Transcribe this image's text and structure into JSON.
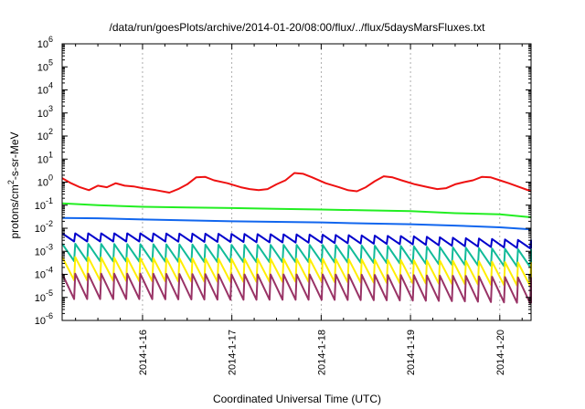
{
  "chart_data": {
    "type": "line",
    "title": "/data/run/goesPlots/archive/2014-01-20/08:00/flux/../flux/5daysMarsFluxes.txt",
    "xlabel": "Coordinated Universal Time (UTC)",
    "ylabel": "protons/cm²-s-sr-MeV",
    "ylabel_parts": {
      "pre": "protons/cm",
      "sup": "2",
      "post": "-s-sr-MeV"
    },
    "yscale": "log",
    "ylim_exponent": [
      -6,
      6
    ],
    "y_ticks": [
      {
        "base": "10",
        "exp": "-6"
      },
      {
        "base": "10",
        "exp": "-5"
      },
      {
        "base": "10",
        "exp": "-4"
      },
      {
        "base": "10",
        "exp": "-3"
      },
      {
        "base": "10",
        "exp": "-2"
      },
      {
        "base": "10",
        "exp": "-1"
      },
      {
        "base": "10",
        "exp": "0"
      },
      {
        "base": "10",
        "exp": "1"
      },
      {
        "base": "10",
        "exp": "2"
      },
      {
        "base": "10",
        "exp": "3"
      },
      {
        "base": "10",
        "exp": "4"
      },
      {
        "base": "10",
        "exp": "5"
      },
      {
        "base": "10",
        "exp": "6"
      }
    ],
    "x_ticks": [
      "2014-1-16",
      "2014-1-17",
      "2014-1-18",
      "2014-1-19",
      "2014-1-20"
    ],
    "xlim_days": [
      15.1,
      20.35
    ],
    "grid": true,
    "series": [
      {
        "color": "#ee1111",
        "points": [
          [
            15.1,
            1.5
          ],
          [
            15.2,
            0.9
          ],
          [
            15.3,
            0.6
          ],
          [
            15.4,
            0.45
          ],
          [
            15.5,
            0.7
          ],
          [
            15.6,
            0.6
          ],
          [
            15.7,
            0.9
          ],
          [
            15.8,
            0.7
          ],
          [
            15.9,
            0.65
          ],
          [
            16.0,
            0.55
          ],
          [
            16.15,
            0.45
          ],
          [
            16.3,
            0.35
          ],
          [
            16.4,
            0.5
          ],
          [
            16.5,
            0.8
          ],
          [
            16.6,
            1.6
          ],
          [
            16.7,
            1.7
          ],
          [
            16.8,
            1.2
          ],
          [
            16.95,
            0.9
          ],
          [
            17.1,
            0.6
          ],
          [
            17.2,
            0.5
          ],
          [
            17.3,
            0.45
          ],
          [
            17.4,
            0.5
          ],
          [
            17.5,
            0.8
          ],
          [
            17.6,
            1.2
          ],
          [
            17.7,
            2.5
          ],
          [
            17.8,
            2.3
          ],
          [
            17.9,
            1.6
          ],
          [
            18.05,
            0.9
          ],
          [
            18.2,
            0.6
          ],
          [
            18.3,
            0.45
          ],
          [
            18.4,
            0.4
          ],
          [
            18.5,
            0.6
          ],
          [
            18.6,
            1.1
          ],
          [
            18.7,
            1.8
          ],
          [
            18.8,
            1.6
          ],
          [
            18.9,
            1.2
          ],
          [
            19.05,
            0.8
          ],
          [
            19.2,
            0.6
          ],
          [
            19.3,
            0.5
          ],
          [
            19.4,
            0.55
          ],
          [
            19.5,
            0.8
          ],
          [
            19.6,
            1.0
          ],
          [
            19.7,
            1.2
          ],
          [
            19.8,
            1.7
          ],
          [
            19.9,
            1.6
          ],
          [
            20.0,
            1.2
          ],
          [
            20.1,
            0.9
          ],
          [
            20.2,
            0.65
          ],
          [
            20.35,
            0.4
          ]
        ]
      },
      {
        "color": "#22ee22",
        "points": [
          [
            15.1,
            0.12
          ],
          [
            15.5,
            0.1
          ],
          [
            16.0,
            0.085
          ],
          [
            16.5,
            0.08
          ],
          [
            17.0,
            0.075
          ],
          [
            17.5,
            0.07
          ],
          [
            18.0,
            0.065
          ],
          [
            18.5,
            0.06
          ],
          [
            19.0,
            0.055
          ],
          [
            19.5,
            0.045
          ],
          [
            20.0,
            0.04
          ],
          [
            20.35,
            0.03
          ]
        ]
      },
      {
        "color": "#1166ee",
        "points": [
          [
            15.1,
            0.028
          ],
          [
            15.5,
            0.027
          ],
          [
            16.0,
            0.024
          ],
          [
            16.5,
            0.022
          ],
          [
            17.0,
            0.02
          ],
          [
            17.5,
            0.019
          ],
          [
            18.0,
            0.018
          ],
          [
            18.5,
            0.016
          ],
          [
            19.0,
            0.015
          ],
          [
            19.5,
            0.013
          ],
          [
            20.0,
            0.011
          ],
          [
            20.35,
            0.009
          ]
        ]
      },
      {
        "color": "#0000cc",
        "sawtooth": {
          "base": [
            [
              15.1,
              0.004
            ],
            [
              16.0,
              0.004
            ],
            [
              17.0,
              0.0038
            ],
            [
              18.0,
              0.0035
            ],
            [
              19.0,
              0.003
            ],
            [
              19.6,
              0.0025
            ],
            [
              20.35,
              0.002
            ]
          ],
          "amp": 0.35,
          "teeth": 36
        }
      },
      {
        "color": "#11bb99",
        "sawtooth": {
          "base": [
            [
              15.1,
              0.0009
            ],
            [
              16.0,
              0.00085
            ],
            [
              17.0,
              0.0008
            ],
            [
              18.0,
              0.0008
            ],
            [
              19.0,
              0.0007
            ],
            [
              19.6,
              0.0006
            ],
            [
              20.35,
              0.0005
            ]
          ],
          "amp": 0.75,
          "teeth": 36
        }
      },
      {
        "color": "#ffee00",
        "sawtooth": {
          "base": [
            [
              15.1,
              0.00018
            ],
            [
              16.0,
              0.00016
            ],
            [
              17.0,
              0.00015
            ],
            [
              18.0,
              0.00015
            ],
            [
              19.0,
              0.00013
            ],
            [
              19.6,
              0.00012
            ],
            [
              20.35,
              0.0001
            ]
          ],
          "amp": 1.0,
          "teeth": 36
        }
      },
      {
        "color": "#993366",
        "sawtooth": {
          "base": [
            [
              15.1,
              3e-05
            ],
            [
              16.0,
              3e-05
            ],
            [
              17.0,
              2.8e-05
            ],
            [
              18.0,
              2.8e-05
            ],
            [
              19.0,
              2.6e-05
            ],
            [
              19.6,
              2.4e-05
            ],
            [
              20.35,
              2e-05
            ]
          ],
          "amp": 1.1,
          "teeth": 36
        }
      }
    ]
  }
}
